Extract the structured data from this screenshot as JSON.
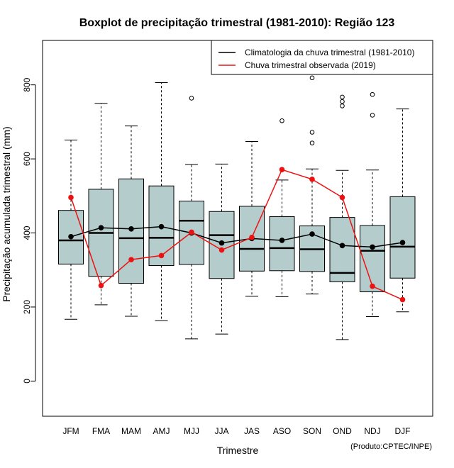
{
  "chart_data": {
    "type": "boxplot",
    "title": "Boxplot de precipitação trimestral (1981-2010): Região 123",
    "xlabel": "Trimestre",
    "ylabel": "Precipitação acumulada trimestral (mm)",
    "credit": "(Produto:CPTEC/INPE)",
    "ylim": [
      -95,
      920
    ],
    "yticks": [
      0,
      200,
      400,
      600,
      800
    ],
    "categories": [
      "JFM",
      "FMA",
      "MAM",
      "AMJ",
      "MJJ",
      "JJA",
      "JAS",
      "ASO",
      "SON",
      "OND",
      "NDJ",
      "DJF"
    ],
    "boxes": [
      {
        "whisker_low": 167,
        "q1": 316,
        "median": 380,
        "q3": 461,
        "whisker_high": 651,
        "outliers": []
      },
      {
        "whisker_low": 206,
        "q1": 283,
        "median": 400,
        "q3": 518,
        "whisker_high": 750,
        "outliers": []
      },
      {
        "whisker_low": 175,
        "q1": 264,
        "median": 386,
        "q3": 546,
        "whisker_high": 689,
        "outliers": []
      },
      {
        "whisker_low": 163,
        "q1": 312,
        "median": 387,
        "q3": 527,
        "whisker_high": 806,
        "outliers": []
      },
      {
        "whisker_low": 114,
        "q1": 315,
        "median": 433,
        "q3": 486,
        "whisker_high": 585,
        "outliers": [
          764
        ]
      },
      {
        "whisker_low": 127,
        "q1": 277,
        "median": 394,
        "q3": 458,
        "whisker_high": 586,
        "outliers": []
      },
      {
        "whisker_low": 229,
        "q1": 297,
        "median": 357,
        "q3": 472,
        "whisker_high": 647,
        "outliers": []
      },
      {
        "whisker_low": 228,
        "q1": 298,
        "median": 359,
        "q3": 444,
        "whisker_high": 543,
        "outliers": [
          703
        ]
      },
      {
        "whisker_low": 235,
        "q1": 296,
        "median": 356,
        "q3": 419,
        "whisker_high": 573,
        "outliers": [
          643,
          672,
          819
        ]
      },
      {
        "whisker_low": 112,
        "q1": 268,
        "median": 292,
        "q3": 442,
        "whisker_high": 569,
        "outliers": [
          743,
          755,
          767
        ]
      },
      {
        "whisker_low": 174,
        "q1": 241,
        "median": 352,
        "q3": 420,
        "whisker_high": 570,
        "outliers": [
          718,
          774
        ]
      },
      {
        "whisker_low": 187,
        "q1": 278,
        "median": 363,
        "q3": 498,
        "whisker_high": 735,
        "outliers": []
      }
    ],
    "series": [
      {
        "name": "Climatologia da chuva trimestral (1981-2010)",
        "color": "#000000",
        "values": [
          390,
          414,
          411,
          417,
          400,
          373,
          385,
          380,
          397,
          366,
          362,
          374
        ]
      },
      {
        "name": "Chuva trimestral observada (2019)",
        "color": "#ee1111",
        "values": [
          496,
          258,
          328,
          339,
          402,
          354,
          388,
          571,
          545,
          496,
          256,
          220
        ]
      }
    ],
    "box_fill": "#b4cccc",
    "legend_position": "top-right"
  }
}
